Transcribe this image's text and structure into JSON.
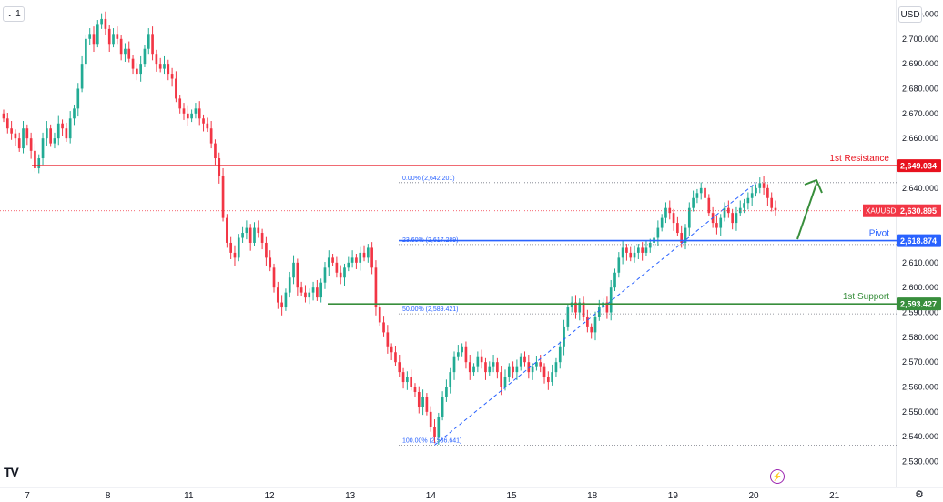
{
  "toolbar": {
    "interval_label": "1",
    "currency_label": "USD",
    "logo_text": "TV"
  },
  "icons": {
    "interval": "chevron-down-icon",
    "logo": "tradingview-logo-icon",
    "flash": "lightning-icon",
    "settings": "gear-icon"
  },
  "colors": {
    "up": "#22ab94",
    "down": "#f23645",
    "resistance": "#e8121e",
    "pivot": "#2962ff",
    "support": "#388e3c",
    "arrow": "#388e3c",
    "fib": "#2962ff",
    "price_tag": "#f23645",
    "grid": "#f0f3fa"
  },
  "chart_data": {
    "type": "candlestick",
    "symbol": "XAUUSD",
    "currency": "USD",
    "y_range": [
      2528,
      2712
    ],
    "y_ticks": [
      "2,710.000",
      "2,700.000",
      "2,690.000",
      "2,680.000",
      "2,670.000",
      "2,660.000",
      "2,650.000",
      "2,640.000",
      "2,630.000",
      "2,620.000",
      "2,610.000",
      "2,600.000",
      "2,590.000",
      "2,580.000",
      "2,570.000",
      "2,560.000",
      "2,550.000",
      "2,540.000",
      "2,530.000"
    ],
    "x_ticks": [
      {
        "label": "7",
        "day": 7
      },
      {
        "label": "8",
        "day": 8
      },
      {
        "label": "11",
        "day": 9
      },
      {
        "label": "12",
        "day": 10
      },
      {
        "label": "13",
        "day": 11
      },
      {
        "label": "14",
        "day": 12
      },
      {
        "label": "15",
        "day": 13
      },
      {
        "label": "18",
        "day": 14
      },
      {
        "label": "19",
        "day": 15
      },
      {
        "label": "20",
        "day": 16
      },
      {
        "label": "21",
        "day": 17
      }
    ],
    "x_range_days": [
      7.0,
      17.15
    ],
    "closes": [
      2668,
      2664,
      2662,
      2660,
      2656,
      2664,
      2660,
      2655,
      2648,
      2652,
      2660,
      2664,
      2658,
      2660,
      2666,
      2664,
      2660,
      2668,
      2672,
      2680,
      2690,
      2700,
      2702,
      2698,
      2706,
      2708,
      2704,
      2698,
      2702,
      2700,
      2694,
      2696,
      2692,
      2688,
      2686,
      2690,
      2696,
      2702,
      2694,
      2690,
      2688,
      2690,
      2686,
      2684,
      2676,
      2672,
      2670,
      2668,
      2670,
      2672,
      2668,
      2666,
      2664,
      2658,
      2652,
      2645,
      2628,
      2618,
      2614,
      2612,
      2620,
      2622,
      2624,
      2618,
      2624,
      2622,
      2618,
      2612,
      2608,
      2600,
      2594,
      2592,
      2598,
      2604,
      2610,
      2600,
      2598,
      2596,
      2598,
      2600,
      2596,
      2602,
      2608,
      2612,
      2610,
      2606,
      2604,
      2608,
      2610,
      2612,
      2610,
      2614,
      2612,
      2616,
      2608,
      2592,
      2586,
      2582,
      2576,
      2574,
      2570,
      2566,
      2562,
      2564,
      2560,
      2558,
      2552,
      2556,
      2550,
      2544,
      2540,
      2548,
      2556,
      2560,
      2566,
      2572,
      2574,
      2576,
      2570,
      2566,
      2568,
      2572,
      2570,
      2566,
      2568,
      2570,
      2566,
      2560,
      2564,
      2568,
      2566,
      2568,
      2572,
      2570,
      2566,
      2568,
      2570,
      2568,
      2564,
      2562,
      2566,
      2570,
      2576,
      2584,
      2592,
      2594,
      2590,
      2594,
      2588,
      2584,
      2582,
      2588,
      2592,
      2594,
      2590,
      2600,
      2606,
      2612,
      2616,
      2614,
      2612,
      2614,
      2616,
      2614,
      2616,
      2618,
      2620,
      2624,
      2628,
      2632,
      2630,
      2626,
      2622,
      2618,
      2624,
      2632,
      2636,
      2638,
      2640,
      2636,
      2630,
      2626,
      2624,
      2628,
      2632,
      2630,
      2626,
      2630,
      2632,
      2634,
      2636,
      2638,
      2640,
      2642,
      2640,
      2636,
      2632,
      2631
    ],
    "fib_levels": [
      {
        "label": "0.00% (2,642.201)",
        "value": 2642.201
      },
      {
        "label": "23.60% (2,617.289)",
        "value": 2617.289
      },
      {
        "label": "50.00% (2,589.421)",
        "value": 2589.421
      },
      {
        "label": "100.00% (2,536.641)",
        "value": 2536.641
      }
    ],
    "levels": {
      "resistance": {
        "name": "1st Resistance",
        "value": 2649.034,
        "tag": "2,649.034"
      },
      "pivot": {
        "name": "Pivot",
        "value": 2618.874,
        "tag": "2,618.874"
      },
      "support": {
        "name": "1st Support",
        "value": 2593.427,
        "tag": "2,593.427"
      }
    },
    "last_price": {
      "symbol": "XAUUSD",
      "value": 2630.895,
      "tag": "2,630.895"
    },
    "annotations": [
      "arrow-up"
    ]
  }
}
